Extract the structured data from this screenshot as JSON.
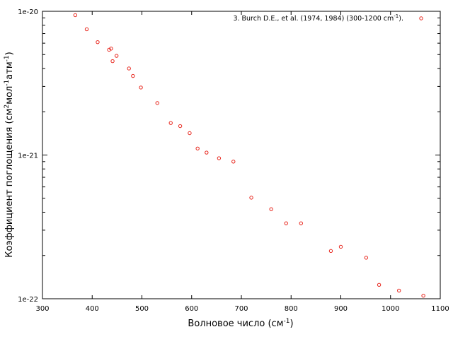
{
  "chart_data": {
    "type": "scatter",
    "x_axis_label": "Волновое число (см",
    "x_axis_label_sup": "-1",
    "x_axis_label_end": ")",
    "y_axis_label_parts": [
      "Коэффициент поглощения (см",
      "2",
      "мол",
      "-1",
      "атм",
      "-1",
      ")"
    ],
    "x_ticks": [
      300,
      400,
      500,
      600,
      700,
      800,
      900,
      1000,
      1100
    ],
    "y_ticks": [
      {
        "value": 1e-20,
        "label": "1e-20"
      },
      {
        "value": 1e-21,
        "label": "1e-21"
      },
      {
        "value": 1e-22,
        "label": "1e-22"
      }
    ],
    "xlim": [
      300,
      1100
    ],
    "ylim": [
      1e-22,
      1e-20
    ],
    "y_scale": "log",
    "grid": false,
    "legend_placement": "top-right",
    "series": [
      {
        "name": "3. Burch D.E., et al. (1974, 1984) (300-1200 cm",
        "name_sup": "-1",
        "name_end": ").",
        "color": "#e8281f",
        "marker": "open-circle",
        "x": [
          366,
          389,
          411,
          434,
          438,
          441,
          449,
          474,
          482,
          498,
          531,
          558,
          577,
          596,
          612,
          630,
          655,
          684,
          720,
          760,
          790,
          820,
          880,
          900,
          951,
          977,
          1017,
          1066
        ],
        "y": [
          9.4e-21,
          7.5e-21,
          6.1e-21,
          5.4e-21,
          5.5e-21,
          4.5e-21,
          4.9e-21,
          4e-21,
          3.55e-21,
          2.95e-21,
          2.3e-21,
          1.67e-21,
          1.59e-21,
          1.42e-21,
          1.11e-21,
          1.04e-21,
          9.5e-22,
          9e-22,
          5.05e-22,
          4.2e-22,
          3.35e-22,
          3.35e-22,
          2.15e-22,
          2.3e-22,
          1.93e-22,
          1.25e-22,
          1.14e-22,
          1.05e-22
        ]
      }
    ]
  }
}
